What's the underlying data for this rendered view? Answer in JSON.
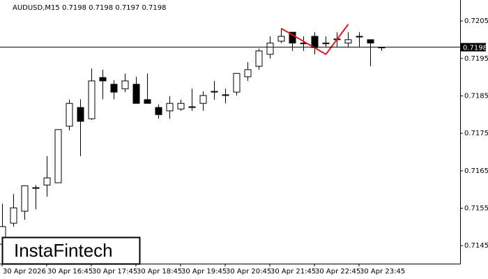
{
  "chart_data": {
    "type": "candlestick",
    "title": "AUDUSD,M15  0.7198 0.7198 0.7197 0.7198",
    "watermark": "InstaFintech",
    "categories": [
      "30 Apr 2026",
      null,
      null,
      null,
      "30 Apr 16:45",
      null,
      null,
      null,
      "30 Apr 17:45",
      null,
      null,
      null,
      "30 Apr 18:45",
      null,
      null,
      null,
      "30 Apr 19:45",
      null,
      null,
      null,
      "30 Apr 20:45",
      null,
      null,
      null,
      "30 Apr 21:45",
      null,
      null,
      null,
      "30 Apr 22:45",
      null,
      null,
      null,
      "30 Apr 23:45",
      null,
      null
    ],
    "open": [
      0.71454,
      0.7151,
      0.71542,
      0.71603,
      0.71612,
      0.71618,
      0.71769,
      0.71819,
      0.71789,
      0.71899,
      0.71881,
      0.71869,
      0.71881,
      0.7184,
      0.71819,
      0.7181,
      0.71815,
      0.71819,
      0.7183,
      0.7186,
      0.71851,
      0.7186,
      0.71901,
      0.71929,
      0.71961,
      0.71996,
      0.7202,
      0.71991,
      0.72009,
      0.71991,
      0.72,
      0.71991,
      0.72009,
      0.72,
      0.7198
    ],
    "high": [
      0.71562,
      0.71588,
      0.7161,
      0.71612,
      0.71689,
      0.7176,
      0.7184,
      0.71841,
      0.71923,
      0.7192,
      0.71892,
      0.7191,
      0.71901,
      0.7191,
      0.71827,
      0.71849,
      0.7184,
      0.71869,
      0.71862,
      0.7189,
      0.71869,
      0.7191,
      0.7194,
      0.71976,
      0.72009,
      0.7203,
      0.7202,
      0.72009,
      0.7202,
      0.72009,
      0.7202,
      0.7202,
      0.7202,
      0.72,
      0.7198
    ],
    "low": [
      0.7145,
      0.71501,
      0.71519,
      0.71547,
      0.71581,
      0.71618,
      0.71758,
      0.71689,
      0.71786,
      0.71841,
      0.71841,
      0.7186,
      0.7183,
      0.7183,
      0.71789,
      0.71789,
      0.7181,
      0.7181,
      0.7181,
      0.7184,
      0.7183,
      0.71851,
      0.7189,
      0.7192,
      0.7195,
      0.71991,
      0.7197,
      0.7197,
      0.71961,
      0.71979,
      0.71979,
      0.71979,
      0.71979,
      0.71929,
      0.7197
    ],
    "close": [
      0.71501,
      0.71551,
      0.7161,
      0.71605,
      0.71631,
      0.7176,
      0.7183,
      0.71782,
      0.7189,
      0.7189,
      0.7186,
      0.7189,
      0.7183,
      0.7183,
      0.718,
      0.7183,
      0.7183,
      0.71821,
      0.71851,
      0.71862,
      0.71853,
      0.7191,
      0.7192,
      0.7197,
      0.71991,
      0.72009,
      0.71991,
      0.71991,
      0.71979,
      0.71991,
      0.72002,
      0.72,
      0.72009,
      0.71991,
      0.7198
    ],
    "up_color": "#ffffff",
    "down_color": "#000000",
    "wick_color": "#000000",
    "current_price": 0.7198,
    "pattern_line": {
      "color": "#e8141c",
      "x": [
        25,
        29,
        31
      ],
      "values": [
        0.7203,
        0.71961,
        0.72041
      ]
    },
    "ylim": [
      0.71402,
      0.72106
    ],
    "yticks": [
      0.7145,
      0.7155,
      0.7165,
      0.7175,
      0.7185,
      0.7195,
      0.7205
    ]
  }
}
